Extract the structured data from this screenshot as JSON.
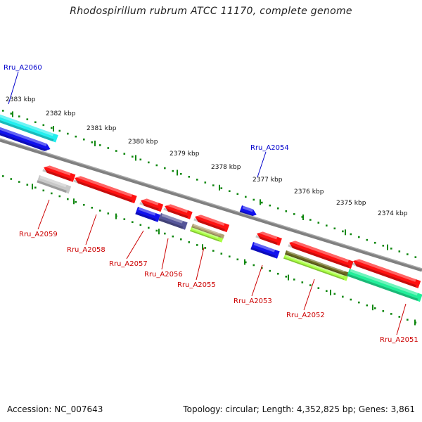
{
  "title": "Rhodospirillum rubrum ATCC 11170, complete genome",
  "footer": {
    "accession": "Accession: NC_007643",
    "summary": "Topology: circular; Length: 4,352,825 bp; Genes: 3,861"
  },
  "colors": {
    "backbone": "#808080",
    "tick": "#118811",
    "forward_label": "#0000cc",
    "reverse_label": "#cc0000",
    "red_gene": "#ff1111",
    "blue_gene": "#1111ee",
    "cyan_gene": "#22eeee",
    "grey_gene": "#c8c8c8",
    "slate_gene": "#555599",
    "olive_gene": "#b0a070",
    "lime_gene": "#aaff44",
    "olive_dark_gene": "#6b6b20",
    "teal_gene": "#22ee99"
  },
  "kbp_labels": [
    "2383 kbp",
    "2382 kbp",
    "2381 kbp",
    "2380 kbp",
    "2379 kbp",
    "2378 kbp",
    "2377 kbp",
    "2376 kbp",
    "2375 kbp",
    "2374 kbp"
  ],
  "genes": [
    {
      "name": "Rru_A2060",
      "labelled": true
    },
    {
      "name": "Rru_A2054",
      "labelled": true
    },
    {
      "name": "Rru_A2059",
      "labelled": true
    },
    {
      "name": "Rru_A2058",
      "labelled": true
    },
    {
      "name": "Rru_A2057",
      "labelled": true
    },
    {
      "name": "Rru_A2056",
      "labelled": true
    },
    {
      "name": "Rru_A2055",
      "labelled": true
    },
    {
      "name": "Rru_A2053",
      "labelled": true
    },
    {
      "name": "Rru_A2052",
      "labelled": true
    },
    {
      "name": "Rru_A2051",
      "labelled": true
    }
  ]
}
